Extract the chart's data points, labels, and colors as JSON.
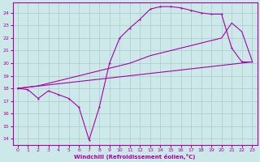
{
  "bg_color": "#cce8e8",
  "grid_color": "#aacccc",
  "line_color": "#aa00aa",
  "xlim": [
    -0.5,
    23.5
  ],
  "ylim": [
    13.5,
    24.8
  ],
  "yticks": [
    14,
    15,
    16,
    17,
    18,
    19,
    20,
    21,
    22,
    23,
    24
  ],
  "xticks": [
    0,
    1,
    2,
    3,
    4,
    5,
    6,
    7,
    8,
    9,
    10,
    11,
    12,
    13,
    14,
    15,
    16,
    17,
    18,
    19,
    20,
    21,
    22,
    23
  ],
  "xlabel": "Windchill (Refroidissement éolien,°C)",
  "line1_x": [
    0,
    1,
    2,
    3,
    4,
    5,
    6,
    7,
    8,
    9,
    10,
    11,
    12,
    13,
    14,
    15,
    16,
    17,
    18,
    19,
    20,
    21,
    22,
    23
  ],
  "line1_y": [
    18.0,
    17.9,
    17.2,
    17.8,
    17.5,
    17.2,
    16.5,
    13.9,
    16.5,
    20.0,
    22.0,
    22.8,
    23.5,
    24.3,
    24.5,
    24.5,
    24.4,
    24.2,
    24.0,
    23.9,
    23.9,
    21.2,
    20.1,
    20.1
  ],
  "line2_x": [
    0,
    1,
    2,
    3,
    4,
    5,
    6,
    7,
    8,
    9,
    10,
    11,
    12,
    13,
    14,
    15,
    16,
    17,
    18,
    19,
    20,
    21,
    22,
    23
  ],
  "line2_y": [
    18.0,
    18.1,
    18.2,
    18.4,
    18.6,
    18.8,
    19.0,
    19.2,
    19.4,
    19.6,
    19.8,
    20.0,
    20.3,
    20.6,
    20.8,
    21.0,
    21.2,
    21.4,
    21.6,
    21.8,
    22.0,
    23.2,
    22.5,
    20.2
  ],
  "line3_x": [
    0,
    23
  ],
  "line3_y": [
    18.0,
    20.1
  ],
  "marker_x": [
    0,
    1,
    2,
    3,
    4,
    5,
    6,
    7,
    8,
    9,
    10,
    11,
    12,
    13,
    14,
    15,
    16,
    17,
    18,
    19,
    20,
    21,
    22,
    23
  ],
  "marker_y": [
    18.0,
    17.9,
    17.2,
    17.8,
    17.5,
    17.2,
    16.5,
    13.9,
    16.5,
    20.0,
    22.0,
    22.8,
    23.5,
    24.3,
    24.5,
    24.5,
    24.4,
    24.2,
    24.0,
    23.9,
    23.9,
    21.2,
    20.1,
    20.1
  ]
}
